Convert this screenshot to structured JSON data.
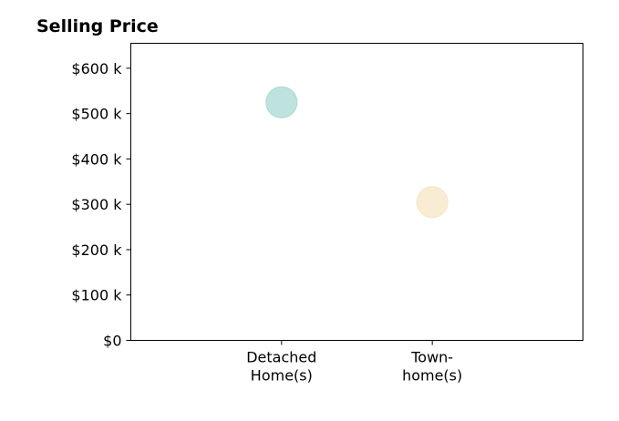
{
  "chart_data": {
    "type": "scatter",
    "title": "Selling Price",
    "xlabel": "",
    "ylabel": "",
    "categories": [
      [
        "Detached",
        "Home(s)"
      ],
      [
        "Town-",
        "home(s)"
      ]
    ],
    "series": [
      {
        "values": [
          525000,
          305000
        ],
        "colors": [
          "#a8d8d3",
          "#f5e6c4"
        ]
      }
    ],
    "ylim": [
      0,
      655000
    ],
    "yticks": [
      0,
      100000,
      200000,
      300000,
      400000,
      500000,
      600000
    ],
    "ytick_labels": [
      "$0",
      "$100 k",
      "$200 k",
      "$300 k",
      "$400 k",
      "$500 k",
      "$600 k"
    ],
    "xlim": [
      -1,
      2
    ],
    "grid": false,
    "legend": "none"
  }
}
